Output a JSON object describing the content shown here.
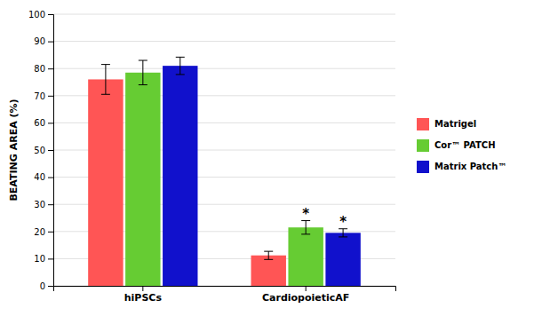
{
  "chart_data": {
    "type": "bar",
    "ylabel": "BEATING AREA (%)",
    "categories": [
      "hiPSCs",
      "CardiopoieticAF"
    ],
    "series": [
      {
        "name": "Matrigel",
        "color": "#FF5555",
        "values": [
          76.0,
          11.2
        ],
        "errors": [
          5.5,
          1.5
        ]
      },
      {
        "name": "Cor™ PATCH",
        "color": "#66CC33",
        "values": [
          78.5,
          21.5
        ],
        "errors": [
          4.5,
          2.5
        ]
      },
      {
        "name": "Matrix Patch™",
        "color": "#1111CC",
        "values": [
          81.0,
          19.5
        ],
        "errors": [
          3.2,
          1.5
        ]
      }
    ],
    "annotations": [
      {
        "text": "*",
        "category": "CardiopoieticAF",
        "series": "Cor™ PATCH"
      },
      {
        "text": "*",
        "category": "CardiopoieticAF",
        "series": "Matrix Patch™"
      }
    ],
    "ylim": [
      0,
      100
    ],
    "yticks": [
      0,
      10,
      20,
      30,
      40,
      50,
      60,
      70,
      80,
      90,
      100
    ],
    "grid": true,
    "legend": "right"
  }
}
